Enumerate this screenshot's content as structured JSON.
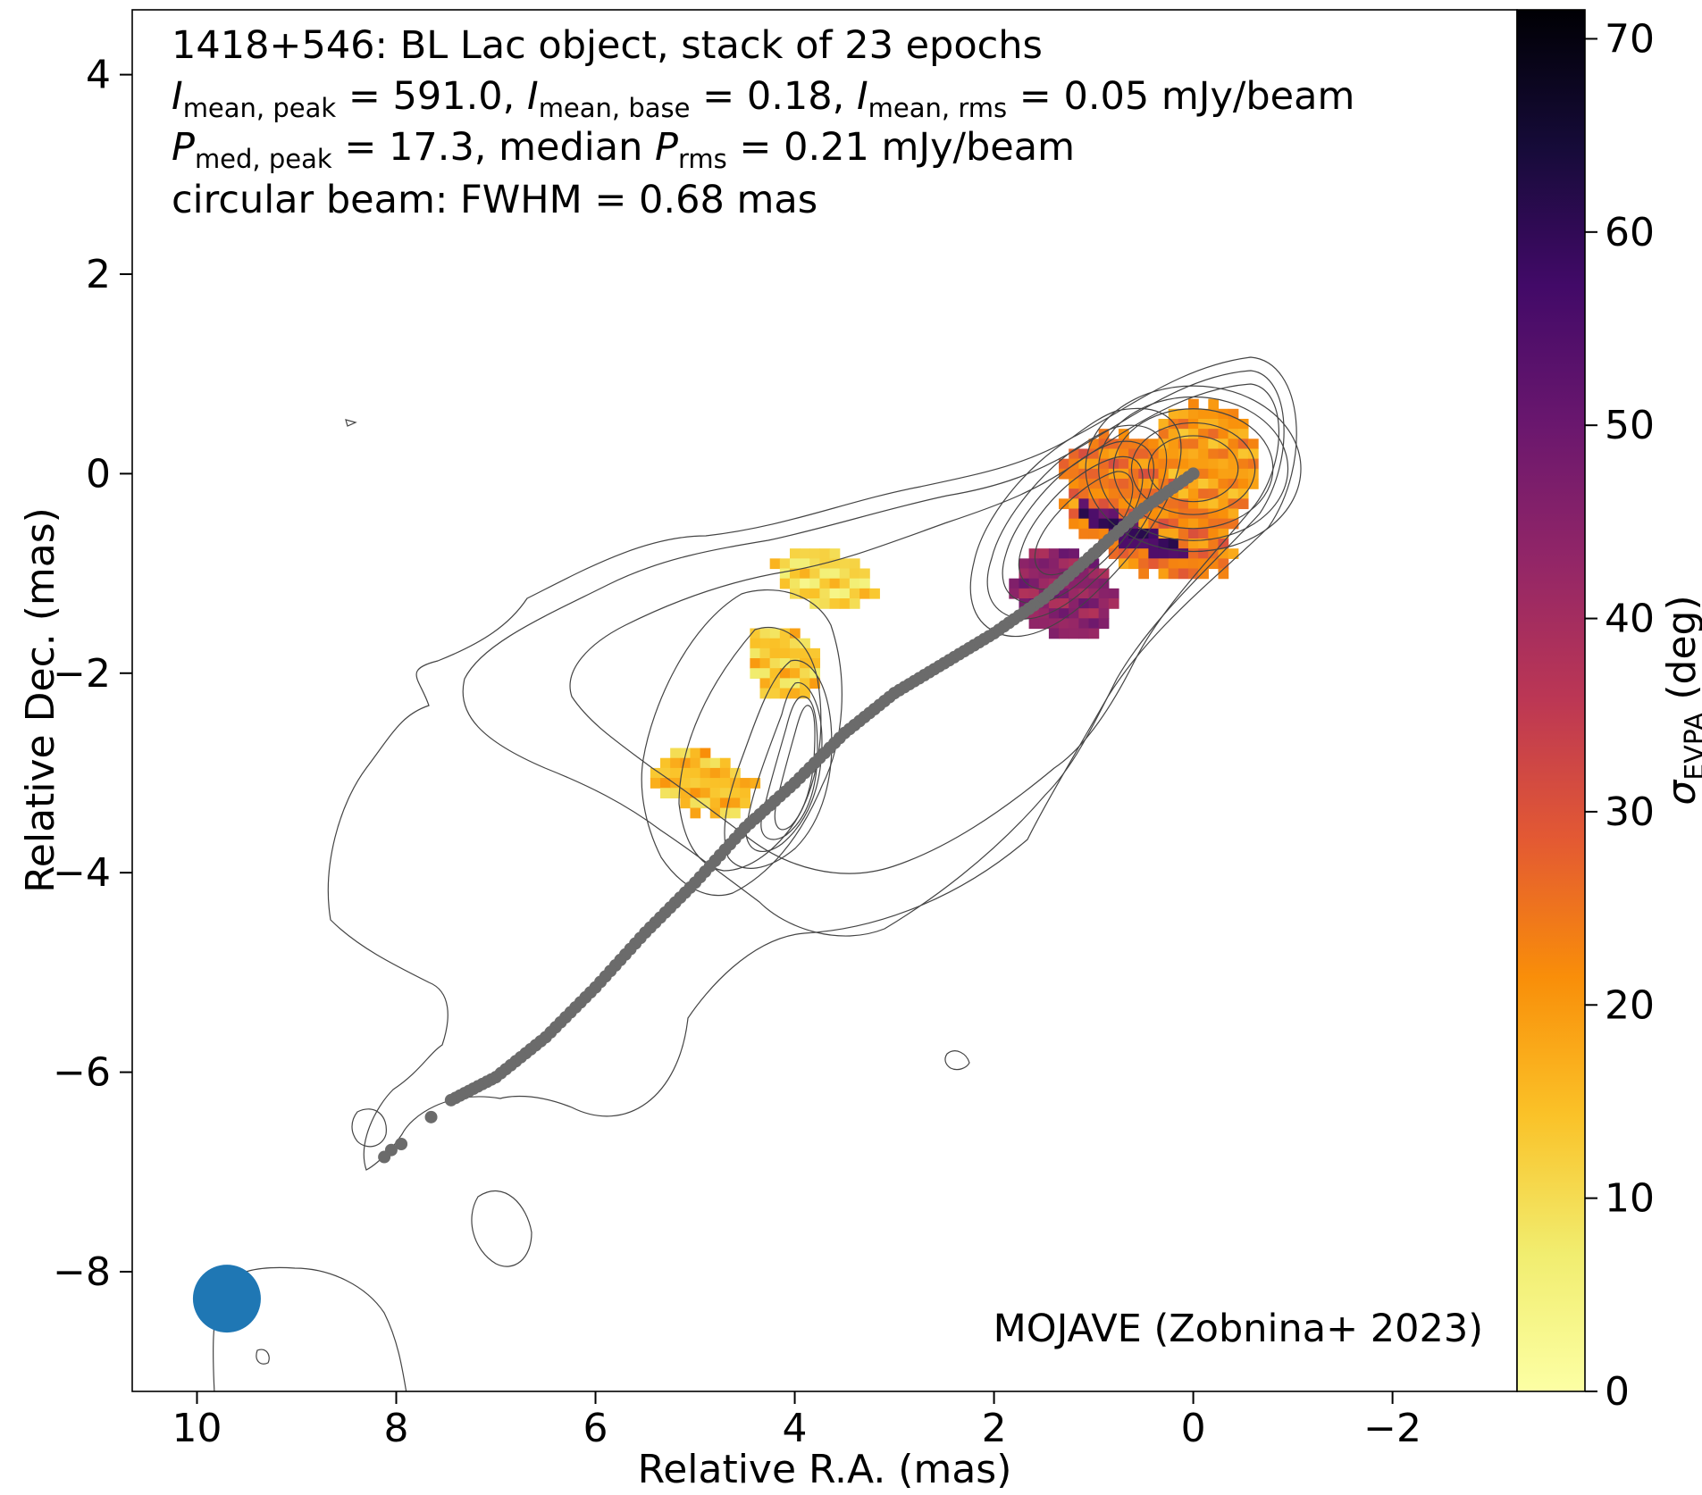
{
  "chart_data": {
    "type": "heatmap",
    "source": "1418+546",
    "annotation": {
      "line1": "1418+546: BL Lac object, stack of 23 epochs",
      "line2": {
        "i_peak_sym": "I",
        "i_peak_sub": "mean, peak",
        "i_peak_val": " = 591.0, ",
        "i_base_sym": "I",
        "i_base_sub": "mean, base",
        "i_base_val": " = 0.18, ",
        "i_rms_sym": "I",
        "i_rms_sub": "mean, rms",
        "i_rms_val": " = 0.05 mJy/beam"
      },
      "line3": {
        "p_sym": "P",
        "p_sub": "med, peak",
        "p_val": " = 17.3, median ",
        "prms_sym": "P",
        "prms_sub": "rms",
        "prms_val": " = 0.21 mJy/beam"
      },
      "line4": "circular beam: FWHM = 0.68 mas",
      "credit": "MOJAVE (Zobnina+ 2023)"
    },
    "xlabel": "Relative R.A. (mas)",
    "ylabel": "Relative Dec. (mas)",
    "xlim": [
      10.65,
      -3.25
    ],
    "ylim": [
      -9.2,
      4.65
    ],
    "xticks": [
      10,
      8,
      6,
      4,
      2,
      0,
      -2
    ],
    "xtick_labels": [
      "10",
      "8",
      "6",
      "4",
      "2",
      "0",
      "−2"
    ],
    "yticks": [
      4,
      2,
      0,
      -2,
      -4,
      -6,
      -8
    ],
    "ytick_labels": [
      "4",
      "2",
      "0",
      "−2",
      "−4",
      "−6",
      "−8"
    ],
    "colorbar": {
      "label_sym": "σ",
      "label_sub": "EVPA",
      "label_unit": " (deg)",
      "range": [
        0,
        71.5
      ],
      "ticks": [
        0,
        10,
        20,
        30,
        40,
        50,
        60,
        70
      ],
      "tick_labels": [
        "0",
        "10",
        "20",
        "30",
        "40",
        "50",
        "60",
        "70"
      ],
      "colormap": "inferno_r"
    },
    "beam": {
      "ra": 9.7,
      "dec": -8.27,
      "fwhm_mas": 0.68,
      "color": "#1f77b4"
    },
    "ridgeline": {
      "color": "#6b6b6b",
      "points": [
        [
          0.0,
          0.0
        ],
        [
          0.5,
          -0.35
        ],
        [
          1.0,
          -0.8
        ],
        [
          1.5,
          -1.25
        ],
        [
          2.0,
          -1.6
        ],
        [
          2.5,
          -1.9
        ],
        [
          3.0,
          -2.2
        ],
        [
          3.5,
          -2.6
        ],
        [
          4.0,
          -3.1
        ],
        [
          4.5,
          -3.55
        ],
        [
          5.0,
          -4.1
        ],
        [
          5.5,
          -4.6
        ],
        [
          6.0,
          -5.15
        ],
        [
          6.5,
          -5.65
        ],
        [
          7.0,
          -6.05
        ],
        [
          7.45,
          -6.28
        ]
      ],
      "isolated_points": [
        [
          7.65,
          -6.45
        ],
        [
          7.95,
          -6.72
        ],
        [
          8.05,
          -6.78
        ],
        [
          8.12,
          -6.85
        ]
      ]
    },
    "contours": {
      "color": "#444444",
      "core_center": [
        0.0,
        0.05
      ],
      "core_radii": [
        [
          0.45,
          0.33
        ],
        [
          0.62,
          0.46
        ],
        [
          0.8,
          0.6
        ],
        [
          0.95,
          0.72
        ],
        [
          1.08,
          0.83
        ]
      ]
    },
    "evpa_regions": [
      {
        "name": "core",
        "center": [
          0.45,
          -0.35
        ],
        "semi_axes": [
          0.95,
          0.62
        ],
        "angle_deg": 34,
        "sigma": 24
      },
      {
        "name": "core-west",
        "center": [
          -0.1,
          0.05
        ],
        "semi_axes": [
          0.55,
          0.65
        ],
        "angle_deg": 0,
        "sigma": 20
      },
      {
        "name": "core-knot",
        "center": [
          1.3,
          -1.2
        ],
        "semi_axes": [
          0.55,
          0.45
        ],
        "angle_deg": 30,
        "sigma": 44
      },
      {
        "name": "dark-band",
        "center": [
          0.6,
          -0.6
        ],
        "semi_axes": [
          0.65,
          0.13
        ],
        "angle_deg": 25,
        "sigma": 56
      },
      {
        "name": "knot-north",
        "center": [
          3.7,
          -1.05
        ],
        "semi_axes": [
          0.5,
          0.28
        ],
        "angle_deg": 10,
        "sigma": 10
      },
      {
        "name": "knot-mid",
        "center": [
          4.1,
          -1.9
        ],
        "semi_axes": [
          0.4,
          0.35
        ],
        "angle_deg": 50,
        "sigma": 13
      },
      {
        "name": "knot-south",
        "center": [
          4.9,
          -3.1
        ],
        "semi_axes": [
          0.55,
          0.3
        ],
        "angle_deg": 20,
        "sigma": 15
      }
    ]
  }
}
